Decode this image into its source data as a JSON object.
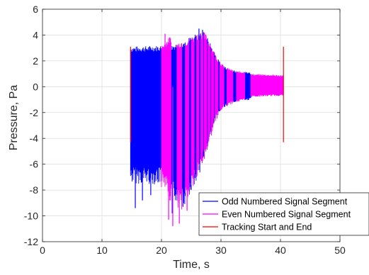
{
  "chart_data": {
    "type": "line",
    "xlabel": "Time, s",
    "ylabel": "Pressure, Pa",
    "xlim": [
      0,
      50
    ],
    "ylim": [
      -12,
      6
    ],
    "xticks": [
      0,
      10,
      20,
      30,
      40,
      50
    ],
    "yticks": [
      -12,
      -10,
      -8,
      -6,
      -4,
      -2,
      0,
      2,
      4,
      6
    ],
    "grid": true,
    "legend_position": "bottom-right",
    "series": [
      {
        "name": "Odd Numbered Signal Segment",
        "color": "#0000ff",
        "segments": [
          {
            "x": [
              14.8,
              20.0
            ],
            "max": [
              3.1,
              3.2
            ],
            "min": [
              -7.5,
              -7.6
            ]
          },
          {
            "x": [
              21.6,
              22.6
            ],
            "max": [
              3.2,
              3.4
            ],
            "min": [
              -8.6,
              -9.0
            ]
          },
          {
            "x": [
              23.4,
              24.0
            ],
            "max": [
              3.5,
              3.6
            ],
            "min": [
              -9.0,
              -9.3
            ]
          },
          {
            "x": [
              24.6,
              25.0
            ],
            "max": [
              3.8,
              3.9
            ],
            "min": [
              -8.5,
              -8.0
            ]
          },
          {
            "x": [
              25.5,
              25.9
            ],
            "max": [
              4.0,
              4.1
            ],
            "min": [
              -7.8,
              -7.5
            ]
          },
          {
            "x": [
              26.3,
              26.6
            ],
            "max": [
              4.2,
              4.3
            ],
            "min": [
              -6.8,
              -6.5
            ]
          },
          {
            "x": [
              27.0,
              27.2
            ],
            "max": [
              4.3,
              4.2
            ],
            "min": [
              -6.0,
              -5.8
            ]
          },
          {
            "x": [
              27.6,
              27.8
            ],
            "max": [
              4.0,
              3.8
            ],
            "min": [
              -5.0,
              -4.8
            ]
          },
          {
            "x": [
              28.2,
              28.4
            ],
            "max": [
              3.4,
              3.2
            ],
            "min": [
              -4.0,
              -3.8
            ]
          },
          {
            "x": [
              28.8,
              29.0
            ],
            "max": [
              2.8,
              2.6
            ],
            "min": [
              -3.0,
              -2.8
            ]
          },
          {
            "x": [
              29.5,
              29.8
            ],
            "max": [
              2.2,
              2.0
            ],
            "min": [
              -2.3,
              -2.1
            ]
          },
          {
            "x": [
              30.5,
              31.0
            ],
            "max": [
              1.6,
              1.5
            ],
            "min": [
              -1.6,
              -1.5
            ]
          },
          {
            "x": [
              32.0,
              32.6
            ],
            "max": [
              1.3,
              1.2
            ],
            "min": [
              -1.3,
              -1.2
            ]
          },
          {
            "x": [
              34.0,
              35.0
            ],
            "max": [
              1.2,
              1.1
            ],
            "min": [
              -1.1,
              -1.0
            ]
          }
        ],
        "peaks": [
          {
            "x": 15.6,
            "min": -9.4
          },
          {
            "x": 16.8,
            "min": -8.8
          },
          {
            "x": 18.2,
            "min": -8.4
          },
          {
            "x": 21.8,
            "min": -9.8
          },
          {
            "x": 23.6,
            "min": -9.3
          },
          {
            "x": 26.3,
            "max": 4.5
          },
          {
            "x": 26.9,
            "max": 4.4
          }
        ]
      },
      {
        "name": "Even Numbered Signal Segment",
        "color": "#ff00ff",
        "segments": [
          {
            "x": [
              20.0,
              21.6
            ],
            "max": [
              3.2,
              4.0
            ],
            "min": [
              -7.8,
              -9.0
            ]
          },
          {
            "x": [
              22.6,
              23.4
            ],
            "max": [
              3.4,
              3.6
            ],
            "min": [
              -9.4,
              -9.6
            ]
          },
          {
            "x": [
              24.0,
              24.6
            ],
            "max": [
              3.6,
              3.8
            ],
            "min": [
              -9.3,
              -8.6
            ]
          },
          {
            "x": [
              25.0,
              25.5
            ],
            "max": [
              3.9,
              4.0
            ],
            "min": [
              -8.0,
              -7.8
            ]
          },
          {
            "x": [
              25.9,
              26.3
            ],
            "max": [
              4.1,
              4.2
            ],
            "min": [
              -7.4,
              -6.8
            ]
          },
          {
            "x": [
              26.6,
              27.0
            ],
            "max": [
              4.3,
              4.3
            ],
            "min": [
              -6.4,
              -6.0
            ]
          },
          {
            "x": [
              27.2,
              27.6
            ],
            "max": [
              4.2,
              4.0
            ],
            "min": [
              -5.8,
              -5.0
            ]
          },
          {
            "x": [
              27.8,
              28.2
            ],
            "max": [
              3.8,
              3.4
            ],
            "min": [
              -4.8,
              -4.0
            ]
          },
          {
            "x": [
              28.4,
              28.8
            ],
            "max": [
              3.2,
              2.8
            ],
            "min": [
              -3.8,
              -3.0
            ]
          },
          {
            "x": [
              29.0,
              29.5
            ],
            "max": [
              2.6,
              2.2
            ],
            "min": [
              -2.8,
              -2.3
            ]
          },
          {
            "x": [
              29.8,
              30.5
            ],
            "max": [
              2.0,
              1.6
            ],
            "min": [
              -2.1,
              -1.6
            ]
          },
          {
            "x": [
              31.0,
              32.0
            ],
            "max": [
              1.5,
              1.3
            ],
            "min": [
              -1.5,
              -1.3
            ]
          },
          {
            "x": [
              32.6,
              34.0
            ],
            "max": [
              1.2,
              1.2
            ],
            "min": [
              -1.2,
              -1.1
            ]
          },
          {
            "x": [
              35.0,
              40.5
            ],
            "max": [
              1.0,
              0.9
            ],
            "min": [
              -0.8,
              -0.7
            ]
          }
        ],
        "peaks": [
          {
            "x": 20.6,
            "max": 4.1
          },
          {
            "x": 21.2,
            "min": -10.3
          },
          {
            "x": 21.9,
            "min": -10.8
          },
          {
            "x": 23.0,
            "min": -10.6
          },
          {
            "x": 24.3,
            "min": -9.6
          }
        ]
      },
      {
        "name": "Tracking Start and End",
        "color": "#ff0000",
        "markers": [
          {
            "x": 14.8,
            "y": [
              -4.3,
              3.1
            ]
          },
          {
            "x": 40.5,
            "y": [
              -4.3,
              3.1
            ]
          }
        ]
      }
    ]
  }
}
